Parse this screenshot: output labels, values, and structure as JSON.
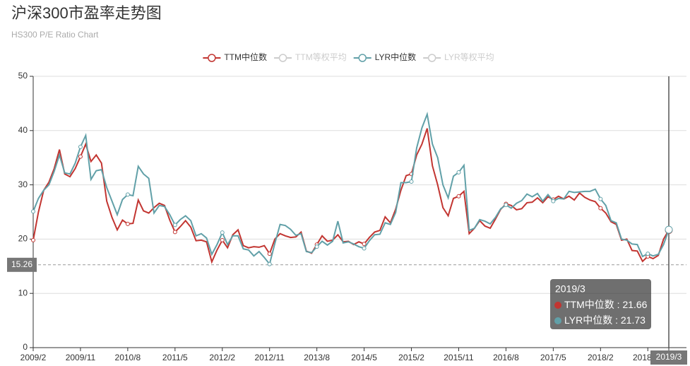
{
  "chart_data": {
    "type": "line",
    "title": "沪深300市盈率走势图",
    "subtitle": "HS300 P/E Ratio Chart",
    "legend": [
      {
        "name": "TTM中位数",
        "color": "#c23531",
        "active": true
      },
      {
        "name": "TTM等权平均",
        "color": "#cccccc",
        "active": false
      },
      {
        "name": "LYR中位数",
        "color": "#61a0a8",
        "active": true
      },
      {
        "name": "LYR等权平均",
        "color": "#cccccc",
        "active": false
      }
    ],
    "categories": [
      "2009/2",
      null,
      null,
      null,
      null,
      null,
      null,
      null,
      null,
      "2009/11",
      null,
      null,
      null,
      null,
      null,
      null,
      null,
      null,
      "2010/8",
      null,
      null,
      null,
      null,
      null,
      null,
      null,
      null,
      "2011/5",
      null,
      null,
      null,
      null,
      null,
      null,
      null,
      null,
      "2012/2",
      null,
      null,
      null,
      null,
      null,
      null,
      null,
      null,
      "2012/11",
      null,
      null,
      null,
      null,
      null,
      null,
      null,
      null,
      "2013/8",
      null,
      null,
      null,
      null,
      null,
      null,
      null,
      null,
      "2014/5",
      null,
      null,
      null,
      null,
      null,
      null,
      null,
      null,
      "2015/2",
      null,
      null,
      null,
      null,
      null,
      null,
      null,
      null,
      "2015/11",
      null,
      null,
      null,
      null,
      null,
      null,
      null,
      null,
      "2016/8",
      null,
      null,
      null,
      null,
      null,
      null,
      null,
      null,
      "2017/5",
      null,
      null,
      null,
      null,
      null,
      null,
      null,
      null,
      "2018/2",
      null,
      null,
      null,
      null,
      null,
      null,
      null,
      null,
      "2018/11",
      null,
      null,
      null,
      "2019/3"
    ],
    "series": [
      {
        "name": "TTM中位数",
        "color": "#c23531",
        "values": [
          19.8,
          25,
          29,
          30.5,
          33,
          36.5,
          32,
          31.5,
          33,
          35.2,
          37.5,
          34.3,
          35.5,
          34,
          27,
          24,
          21.7,
          23.5,
          22.8,
          22.9,
          27.2,
          25.2,
          24.8,
          25.8,
          26.6,
          26.2,
          23.5,
          21.3,
          22.3,
          23.4,
          22.2,
          19.7,
          19.8,
          19.5,
          15.8,
          18,
          19.8,
          18.4,
          20.8,
          21.7,
          18.8,
          18.4,
          18.6,
          18.5,
          18.8,
          17.3,
          20,
          21,
          20.6,
          20.3,
          20.4,
          21.3,
          17.8,
          17.4,
          19,
          20.6,
          19.6,
          19.8,
          20.8,
          19.5,
          19.6,
          19,
          19.5,
          19.1,
          20.3,
          21.3,
          21.6,
          24.1,
          23,
          25.5,
          29,
          31.7,
          32,
          35.5,
          37.5,
          40.4,
          33.5,
          30,
          25.8,
          24.3,
          27.5,
          27.9,
          28.8,
          21,
          22,
          23.4,
          22.4,
          22,
          23.7,
          25.5,
          26.5,
          26.2,
          25.4,
          25.6,
          26.7,
          26.8,
          27.6,
          26.7,
          27.8,
          27.3,
          27.9,
          27.4,
          27.9,
          27.2,
          28.5,
          27.7,
          27.2,
          26.9,
          25.7,
          24.8,
          23.2,
          22.7,
          19.8,
          20,
          17.9,
          17.8,
          15.9,
          16.8,
          16.4,
          17,
          20,
          21.66
        ]
      },
      {
        "name": "LYR中位数",
        "color": "#61a0a8",
        "values": [
          25.1,
          27.5,
          29,
          30,
          32.5,
          35.5,
          32.2,
          32,
          34,
          37,
          39.1,
          31,
          32.6,
          32.8,
          29.5,
          27,
          24.5,
          27.3,
          28.2,
          28,
          33.4,
          32,
          31.2,
          24.8,
          26.2,
          26,
          24.5,
          22.6,
          23.6,
          24.3,
          23.4,
          20.6,
          21,
          20.2,
          17.2,
          19,
          21.2,
          19,
          20.6,
          20.6,
          18.2,
          18,
          16.9,
          17.7,
          16.6,
          15.4,
          19.2,
          22.7,
          22.5,
          21.8,
          20.7,
          21,
          17.7,
          17.5,
          18.6,
          19.6,
          18.9,
          19.6,
          23.3,
          19.3,
          19.5,
          19.1,
          18.6,
          18.3,
          19.7,
          20.8,
          20.9,
          23,
          22.7,
          24.9,
          30.4,
          30.4,
          30.6,
          36.8,
          40.5,
          43,
          37.5,
          35,
          30,
          27.6,
          31.6,
          32.3,
          33.6,
          21.6,
          22,
          23.6,
          23.3,
          22.8,
          24,
          25.6,
          26.3,
          25.7,
          26.6,
          27.1,
          28.3,
          27.8,
          28.4,
          27,
          28.2,
          27,
          27.5,
          27.4,
          28.8,
          28.6,
          28.7,
          28.8,
          28.8,
          29.2,
          27.4,
          26.2,
          23.4,
          23,
          20,
          19.8,
          19.1,
          19,
          16.8,
          17.3,
          16.9,
          17.2,
          19,
          21.73
        ]
      }
    ],
    "ylim": [
      0,
      50
    ],
    "yticks": [
      0,
      10,
      20,
      30,
      40,
      50
    ],
    "grid": true,
    "reference_line": 15.26,
    "tooltip_separator": " : "
  }
}
